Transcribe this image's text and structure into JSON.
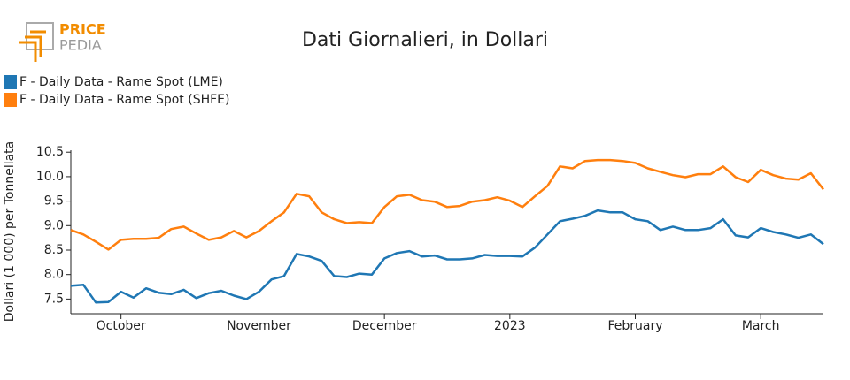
{
  "logo": {
    "line1": "PRICE",
    "line2": "PEDIA"
  },
  "chart_data": {
    "type": "line",
    "title": "Dati Giornalieri, in Dollari",
    "y_label": "Dollari (1 000) per Tonnellata",
    "categories": [
      null,
      null,
      null,
      null,
      "October",
      null,
      null,
      null,
      null,
      null,
      null,
      null,
      null,
      null,
      null,
      "November",
      null,
      null,
      null,
      null,
      null,
      null,
      null,
      null,
      null,
      "December",
      null,
      null,
      null,
      null,
      null,
      null,
      null,
      null,
      null,
      "2023",
      null,
      null,
      null,
      null,
      null,
      null,
      null,
      null,
      null,
      "February",
      null,
      null,
      null,
      null,
      null,
      null,
      null,
      null,
      null,
      "March",
      null,
      null,
      null,
      null,
      null
    ],
    "series": [
      {
        "name": "F - Daily Data - Rame Spot (LME)",
        "color": "#1f77b4",
        "values": [
          7.77,
          7.79,
          7.43,
          7.44,
          7.65,
          7.53,
          7.72,
          7.63,
          7.6,
          7.69,
          7.52,
          7.62,
          7.67,
          7.57,
          7.5,
          7.65,
          7.9,
          7.97,
          8.42,
          8.37,
          8.28,
          7.97,
          7.95,
          8.02,
          8.0,
          8.33,
          8.44,
          8.48,
          8.37,
          8.39,
          8.31,
          8.31,
          8.33,
          8.4,
          8.38,
          8.38,
          8.37,
          8.55,
          8.82,
          9.09,
          9.14,
          9.2,
          9.31,
          9.27,
          9.27,
          9.13,
          9.09,
          8.91,
          8.98,
          8.91,
          8.91,
          8.95,
          9.13,
          8.8,
          8.76,
          8.95,
          8.87,
          8.82,
          8.75,
          8.82,
          8.62
        ]
      },
      {
        "name": "F - Daily Data - Rame Spot (SHFE)",
        "color": "#ff7f0e",
        "values": [
          8.91,
          8.82,
          8.67,
          8.51,
          8.71,
          8.73,
          8.73,
          8.75,
          8.93,
          8.98,
          8.84,
          8.71,
          8.76,
          8.89,
          8.76,
          8.89,
          9.09,
          9.27,
          9.65,
          9.6,
          9.27,
          9.13,
          9.05,
          9.07,
          9.05,
          9.38,
          9.6,
          9.63,
          9.52,
          9.49,
          9.38,
          9.4,
          9.49,
          9.52,
          9.58,
          9.51,
          9.38,
          9.6,
          9.81,
          10.21,
          10.17,
          10.32,
          10.34,
          10.34,
          10.32,
          10.28,
          10.17,
          10.1,
          10.03,
          9.99,
          10.05,
          10.05,
          10.21,
          9.99,
          9.89,
          10.14,
          10.03,
          9.96,
          9.94,
          10.07,
          9.74
        ]
      }
    ],
    "ylim": [
      7.2,
      10.54
    ],
    "yticks": [
      7.5,
      {
        "value": 8,
        "label": "8.0"
      },
      8.5,
      {
        "value": 9,
        "label": "9.0"
      },
      9.5,
      {
        "value": 10,
        "label": "10.0"
      },
      10.5
    ],
    "grid": false
  }
}
